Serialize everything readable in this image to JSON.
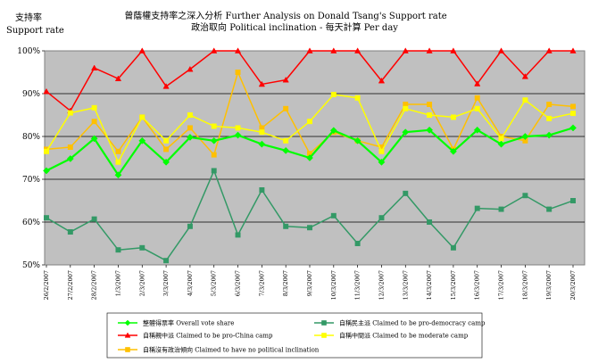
{
  "chart_data": {
    "type": "line",
    "title": "曾蔭權支持率之深入分析 Further Analysis on Donald Tsang's Support rate",
    "subtitle": "政治取向 Political inclination - 每天計算 Per day",
    "ylabel_zh": "支持率",
    "ylabel_en": "Support rate",
    "xlabel": "",
    "ylim": [
      50,
      100
    ],
    "yticks": [
      50,
      60,
      70,
      80,
      90,
      100
    ],
    "ytick_labels": [
      "50%",
      "60%",
      "70%",
      "80%",
      "90%",
      "100%"
    ],
    "grid": true,
    "legend_position": "bottom",
    "x": [
      "26/2/2007",
      "27/2/2007",
      "28/2/2007",
      "1/3/2007",
      "2/3/2007",
      "3/3/2007",
      "4/3/2007",
      "5/3/2007",
      "6/3/2007",
      "7/3/2007",
      "8/3/2007",
      "9/3/2007",
      "10/3/2007",
      "11/3/2007",
      "12/3/2007",
      "13/3/2007",
      "14/3/2007",
      "15/3/2007",
      "16/3/2007",
      "17/3/2007",
      "18/3/2007",
      "19/3/2007",
      "20/3/2007"
    ],
    "series": [
      {
        "name": "整體得票率 Overall vote share",
        "color": "#00ff00",
        "marker": "diamond",
        "values": [
          72,
          74.8,
          79.5,
          71,
          79,
          74,
          79.8,
          79,
          80.3,
          78.2,
          76.7,
          75,
          81.4,
          79,
          74,
          81,
          81.5,
          76.5,
          81.5,
          78.2,
          80,
          80.3,
          82
        ]
      },
      {
        "name": "自稱民主派 Claimed to be pro-democracy camp",
        "color": "#339966",
        "marker": "square",
        "values": [
          61,
          57.7,
          60.7,
          53.5,
          54,
          51,
          59,
          72,
          57,
          67.5,
          59,
          58.7,
          61.5,
          55,
          61,
          66.7,
          60,
          54,
          63.2,
          63,
          66.2,
          63,
          65
        ]
      },
      {
        "name": "自稱親中派 Claimed to be pro-China camp",
        "color": "#ff0000",
        "marker": "triangle",
        "values": [
          90.5,
          86,
          96,
          93.5,
          100,
          91.7,
          95.7,
          100,
          100,
          92.2,
          93.2,
          100,
          100,
          100,
          93,
          100,
          100,
          100,
          92.3,
          100,
          94,
          100,
          100
        ]
      },
      {
        "name": "自稱中間派 Claimed to be moderate camp",
        "color": "#ffff00",
        "marker": "square",
        "values": [
          76.5,
          85.5,
          86.7,
          74,
          84.5,
          79,
          85,
          82.4,
          82,
          81,
          79,
          83.5,
          89.8,
          89,
          76.5,
          86.5,
          85,
          84.5,
          86.5,
          79.5,
          88.5,
          84.2,
          85.4
        ]
      },
      {
        "name": "自稱沒有政治傾向 Claimed to have no political inclination",
        "color": "#ffc000",
        "marker": "square",
        "values": [
          77,
          77.5,
          83.5,
          76.5,
          84.5,
          77,
          82,
          75.7,
          95,
          82,
          86.5,
          76,
          81,
          79,
          77.5,
          87.5,
          87.5,
          77,
          89,
          80,
          79,
          87.5,
          87
        ]
      }
    ]
  }
}
